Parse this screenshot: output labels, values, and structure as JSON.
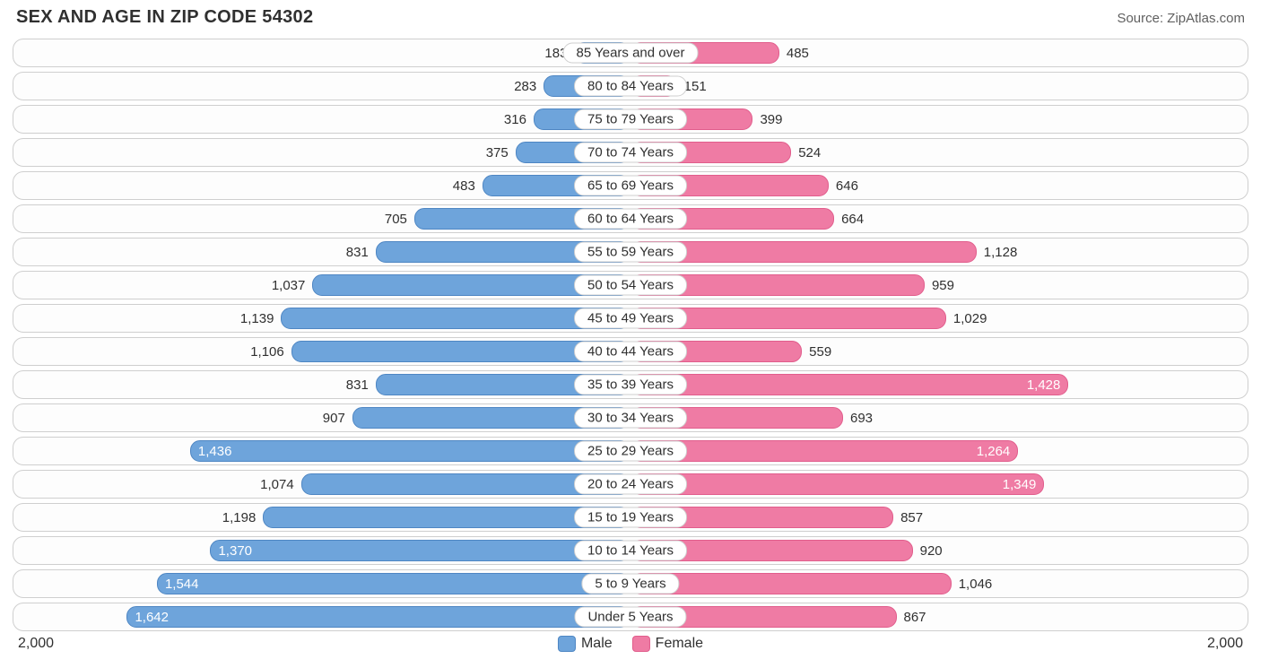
{
  "chart": {
    "type": "diverging-bar",
    "title": "SEX AND AGE IN ZIP CODE 54302",
    "source": "Source: ZipAtlas.com",
    "axis_max": 2000,
    "axis_label_left": "2,000",
    "axis_label_right": "2,000",
    "colors": {
      "male_fill": "#6ea4db",
      "male_border": "#4e86c3",
      "female_fill": "#ef7ba4",
      "female_border": "#e15d8c",
      "row_border": "#cfcfcf",
      "text": "#303030",
      "text_light": "#ffffff",
      "background": "#ffffff"
    },
    "legend": {
      "male": "Male",
      "female": "Female"
    },
    "label_inside_threshold": 1200,
    "categories": [
      {
        "label": "85 Years and over",
        "male": 183,
        "male_txt": "183",
        "female": 485,
        "female_txt": "485"
      },
      {
        "label": "80 to 84 Years",
        "male": 283,
        "male_txt": "283",
        "female": 151,
        "female_txt": "151"
      },
      {
        "label": "75 to 79 Years",
        "male": 316,
        "male_txt": "316",
        "female": 399,
        "female_txt": "399"
      },
      {
        "label": "70 to 74 Years",
        "male": 375,
        "male_txt": "375",
        "female": 524,
        "female_txt": "524"
      },
      {
        "label": "65 to 69 Years",
        "male": 483,
        "male_txt": "483",
        "female": 646,
        "female_txt": "646"
      },
      {
        "label": "60 to 64 Years",
        "male": 705,
        "male_txt": "705",
        "female": 664,
        "female_txt": "664"
      },
      {
        "label": "55 to 59 Years",
        "male": 831,
        "male_txt": "831",
        "female": 1128,
        "female_txt": "1,128"
      },
      {
        "label": "50 to 54 Years",
        "male": 1037,
        "male_txt": "1,037",
        "female": 959,
        "female_txt": "959"
      },
      {
        "label": "45 to 49 Years",
        "male": 1139,
        "male_txt": "1,139",
        "female": 1029,
        "female_txt": "1,029"
      },
      {
        "label": "40 to 44 Years",
        "male": 1106,
        "male_txt": "1,106",
        "female": 559,
        "female_txt": "559"
      },
      {
        "label": "35 to 39 Years",
        "male": 831,
        "male_txt": "831",
        "female": 1428,
        "female_txt": "1,428"
      },
      {
        "label": "30 to 34 Years",
        "male": 907,
        "male_txt": "907",
        "female": 693,
        "female_txt": "693"
      },
      {
        "label": "25 to 29 Years",
        "male": 1436,
        "male_txt": "1,436",
        "female": 1264,
        "female_txt": "1,264"
      },
      {
        "label": "20 to 24 Years",
        "male": 1074,
        "male_txt": "1,074",
        "female": 1349,
        "female_txt": "1,349"
      },
      {
        "label": "15 to 19 Years",
        "male": 1198,
        "male_txt": "1,198",
        "female": 857,
        "female_txt": "857"
      },
      {
        "label": "10 to 14 Years",
        "male": 1370,
        "male_txt": "1,370",
        "female": 920,
        "female_txt": "920"
      },
      {
        "label": "5 to 9 Years",
        "male": 1544,
        "male_txt": "1,544",
        "female": 1046,
        "female_txt": "1,046"
      },
      {
        "label": "Under 5 Years",
        "male": 1642,
        "male_txt": "1,642",
        "female": 867,
        "female_txt": "867"
      }
    ]
  }
}
